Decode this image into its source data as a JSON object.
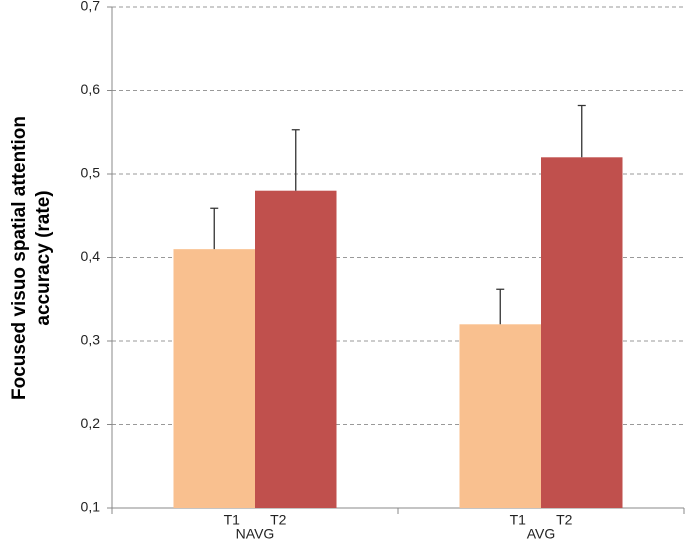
{
  "chart_data": {
    "type": "bar",
    "y_label": [
      "Focused visuo spatial attention",
      "accuracy (rate)"
    ],
    "categories": [
      "NAVG",
      "AVG"
    ],
    "series": [
      {
        "name": "T1",
        "color": "#f9c08f",
        "values": [
          0.41,
          0.32
        ],
        "errors": [
          0.049,
          0.042
        ]
      },
      {
        "name": "T2",
        "color": "#c0504d",
        "values": [
          0.48,
          0.52
        ],
        "errors": [
          0.073,
          0.062
        ]
      }
    ],
    "ylim": [
      0.1,
      0.7
    ],
    "yticks": [
      {
        "value": 0.1,
        "label": "0,1"
      },
      {
        "value": 0.2,
        "label": "0,2"
      },
      {
        "value": 0.3,
        "label": "0,3"
      },
      {
        "value": 0.4,
        "label": "0,4"
      },
      {
        "value": 0.5,
        "label": "0,5"
      },
      {
        "value": 0.6,
        "label": "0,6"
      },
      {
        "value": 0.7,
        "label": "0,7"
      }
    ],
    "grid": true
  }
}
